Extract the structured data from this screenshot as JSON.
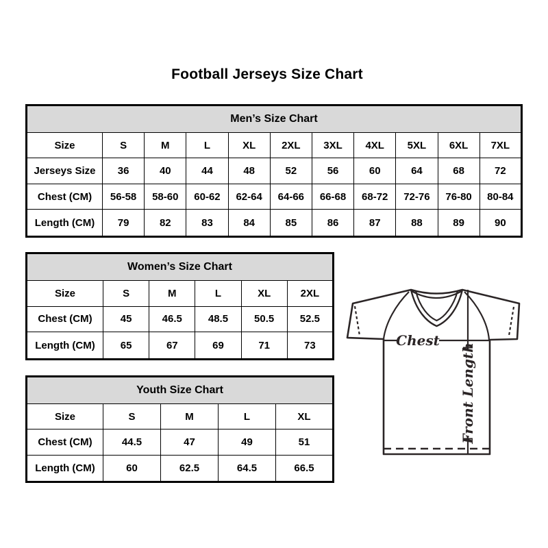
{
  "page": {
    "title": "Football Jerseys Size Chart"
  },
  "tables": [
    {
      "id": "mens",
      "title": "Men’s Size Chart",
      "rows": [
        {
          "label": "Size",
          "values": [
            "S",
            "M",
            "L",
            "XL",
            "2XL",
            "3XL",
            "4XL",
            "5XL",
            "6XL",
            "7XL"
          ]
        },
        {
          "label": "Jerseys Size",
          "values": [
            "36",
            "40",
            "44",
            "48",
            "52",
            "56",
            "60",
            "64",
            "68",
            "72"
          ]
        },
        {
          "label": "Chest (CM)",
          "values": [
            "56-58",
            "58-60",
            "60-62",
            "62-64",
            "64-66",
            "66-68",
            "68-72",
            "72-76",
            "76-80",
            "80-84"
          ]
        },
        {
          "label": "Length (CM)",
          "values": [
            "79",
            "82",
            "83",
            "84",
            "85",
            "86",
            "87",
            "88",
            "89",
            "90"
          ]
        }
      ]
    },
    {
      "id": "womens",
      "title": "Women’s Size Chart",
      "rows": [
        {
          "label": "Size",
          "values": [
            "S",
            "M",
            "L",
            "XL",
            "2XL"
          ]
        },
        {
          "label": "Chest (CM)",
          "values": [
            "45",
            "46.5",
            "48.5",
            "50.5",
            "52.5"
          ]
        },
        {
          "label": "Length (CM)",
          "values": [
            "65",
            "67",
            "69",
            "71",
            "73"
          ]
        }
      ]
    },
    {
      "id": "youth",
      "title": "Youth Size Chart",
      "rows": [
        {
          "label": "Size",
          "values": [
            "S",
            "M",
            "L",
            "XL"
          ]
        },
        {
          "label": "Chest (CM)",
          "values": [
            "44.5",
            "47",
            "49",
            "51"
          ]
        },
        {
          "label": "Length (CM)",
          "values": [
            "60",
            "62.5",
            "64.5",
            "66.5"
          ]
        }
      ]
    }
  ],
  "diagram": {
    "chest_label": "Chest",
    "front_length_label": "Front Length"
  },
  "colors": {
    "header_bg": "#d9d9d9",
    "table_border": "#000000",
    "diagram_line": "#2b2526",
    "text": "#000000",
    "background": "#ffffff"
  }
}
